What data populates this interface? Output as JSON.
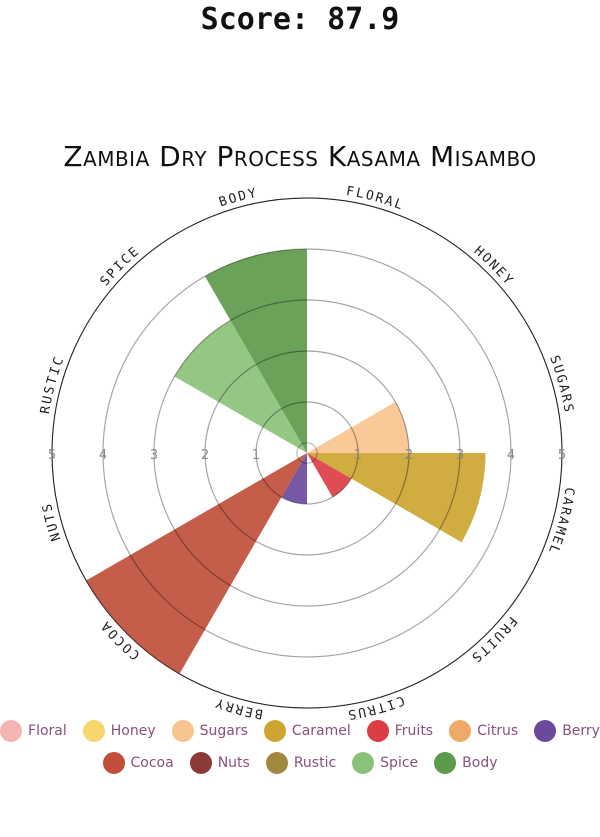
{
  "score_text": "Score: 87.9",
  "chart_data": {
    "type": "polar-bar",
    "title": "Zambia Dry Process Kasama Misambo",
    "rlim": [
      0,
      5
    ],
    "rticks": [
      1,
      2,
      3,
      4,
      5
    ],
    "categories": [
      "Floral",
      "Honey",
      "Sugars",
      "Caramel",
      "Fruits",
      "Citrus",
      "Berry",
      "Cocoa",
      "Nuts",
      "Rustic",
      "Spice",
      "Body"
    ],
    "values": [
      0,
      0,
      2,
      3.5,
      1,
      0,
      1,
      5,
      0,
      0,
      3,
      4
    ],
    "colors": {
      "Floral": "#f4b4b4",
      "Honey": "#f5d76e",
      "Sugars": "#f8c58e",
      "Caramel": "#cda531",
      "Fruits": "#dc3d45",
      "Citrus": "#eeaa66",
      "Berry": "#6a4a9c",
      "Cocoa": "#bf4f3a",
      "Nuts": "#8b3a3a",
      "Rustic": "#a0883f",
      "Spice": "#8bc27a",
      "Body": "#5e9a4c"
    },
    "legend_rows": [
      [
        "Floral",
        "Honey",
        "Sugars",
        "Caramel",
        "Fruits",
        "Citrus",
        "Berry"
      ],
      [
        "Cocoa",
        "Nuts",
        "Rustic",
        "Spice",
        "Body"
      ]
    ]
  }
}
